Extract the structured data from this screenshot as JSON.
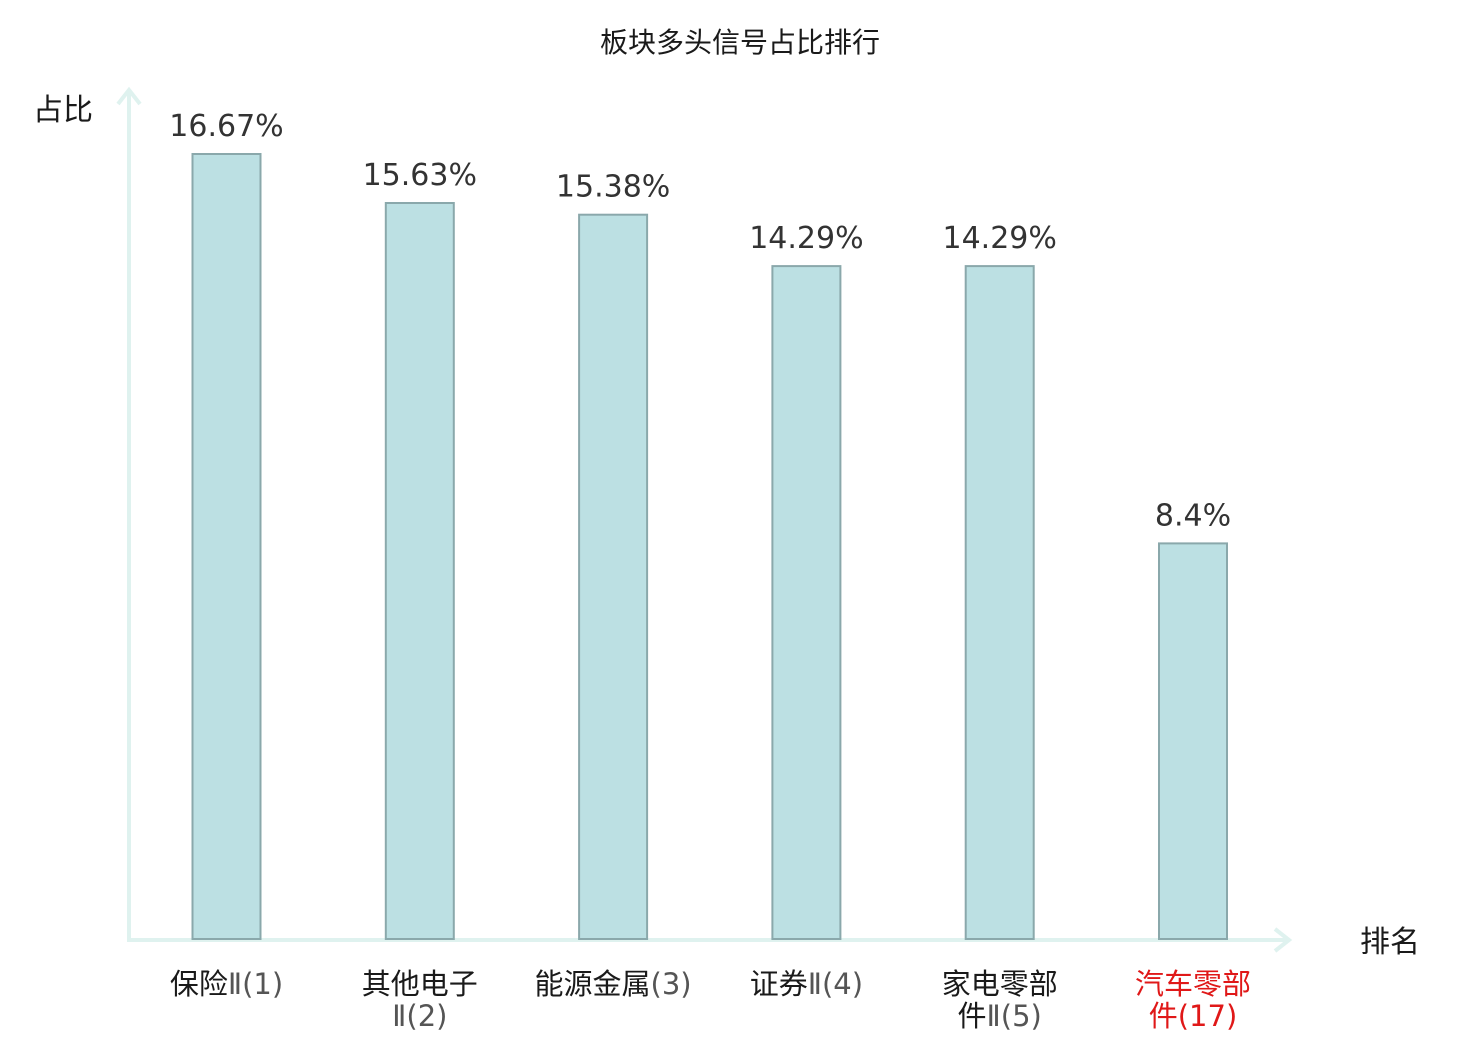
{
  "chart_data": {
    "type": "bar",
    "title": "板块多头信号占比排行",
    "ylabel": "占比",
    "xlabel": "排名",
    "categories": [
      {
        "lines": [
          {
            "name": "保险",
            "suffix": "Ⅱ(1)"
          }
        ],
        "highlight": false
      },
      {
        "lines": [
          {
            "name": "其他电子",
            "suffix": ""
          },
          {
            "name": "",
            "suffix": "Ⅱ(2)"
          }
        ],
        "highlight": false
      },
      {
        "lines": [
          {
            "name": "能源金属",
            "suffix": "(3)"
          }
        ],
        "highlight": false
      },
      {
        "lines": [
          {
            "name": "证券",
            "suffix": "Ⅱ(4)"
          }
        ],
        "highlight": false
      },
      {
        "lines": [
          {
            "name": "家电零部",
            "suffix": ""
          },
          {
            "name": "件",
            "suffix": "Ⅱ(5)"
          }
        ],
        "highlight": false
      },
      {
        "lines": [
          {
            "name": "汽车零部",
            "suffix": ""
          },
          {
            "name": "件",
            "suffix": "(17)"
          }
        ],
        "highlight": true
      }
    ],
    "values": [
      16.67,
      15.63,
      15.38,
      14.29,
      14.29,
      8.4
    ],
    "value_labels": [
      "16.67%",
      "15.63%",
      "15.38%",
      "14.29%",
      "14.29%",
      "8.4%"
    ],
    "ylim": [
      0,
      16.67
    ],
    "grid": false,
    "colors": {
      "bar_fill": "#bce0e3",
      "bar_stroke": "#8aa8ab",
      "axis": "#dff2ef",
      "text": "#1a1a1a",
      "suffix_text": "#555555",
      "highlight": "#e01818"
    }
  }
}
